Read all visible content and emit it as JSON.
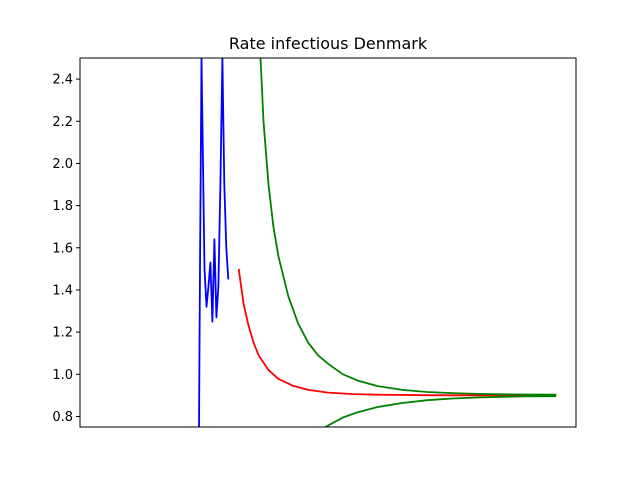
{
  "chart_data": {
    "type": "line",
    "title": "Rate infectious Denmark",
    "xlabel": "",
    "ylabel": "",
    "ylim": [
      0.75,
      2.5
    ],
    "xlim": [
      0,
      100
    ],
    "x_ticks_shown": false,
    "y_ticks": [
      0.8,
      1.0,
      1.2,
      1.4,
      1.6,
      1.8,
      2.0,
      2.2,
      2.4
    ],
    "y_tick_labels": [
      "0.8",
      "1.0",
      "1.2",
      "1.4",
      "1.6",
      "1.8",
      "2.0",
      "2.2",
      "2.4"
    ],
    "grid": false,
    "legend": "none",
    "series": [
      {
        "color": "#0000ff",
        "x": [
          24.0,
          24.2,
          24.5,
          24.8,
          25.1,
          25.5,
          25.9,
          26.3,
          26.7,
          27.1,
          27.5,
          27.9,
          28.3,
          28.7,
          29.1,
          29.5,
          29.9,
          30.3,
          30.6,
          30.9,
          31.2
        ],
        "y": [
          0.75,
          1.5,
          2.5,
          2.0,
          1.5,
          1.32,
          1.42,
          1.53,
          1.25,
          1.64,
          1.27,
          1.42,
          1.9,
          2.5,
          1.9,
          1.6,
          1.45,
          null,
          null,
          null,
          null
        ]
      },
      {
        "color": "#ff0000",
        "x": [
          32,
          33,
          34,
          35,
          36,
          38,
          40,
          43,
          46,
          50,
          55,
          60,
          70,
          80,
          90,
          96
        ],
        "y": [
          1.5,
          1.33,
          1.23,
          1.15,
          1.09,
          1.02,
          0.978,
          0.945,
          0.926,
          0.913,
          0.906,
          0.903,
          0.901,
          0.9,
          0.9,
          0.9
        ]
      },
      {
        "color": "#008000",
        "x": [
          36.4,
          37,
          38,
          39,
          40,
          42,
          44,
          46,
          48,
          50,
          53,
          56,
          60,
          65,
          70,
          75,
          80,
          85,
          90,
          96
        ],
        "y": [
          2.5,
          2.2,
          1.9,
          1.7,
          1.56,
          1.37,
          1.24,
          1.15,
          1.09,
          1.05,
          1.0,
          0.97,
          0.944,
          0.926,
          0.916,
          0.911,
          0.907,
          0.905,
          0.904,
          0.903
        ]
      },
      {
        "color": "#008000",
        "x": [
          49.5,
          51,
          53,
          56,
          60,
          65,
          70,
          75,
          80,
          85,
          90,
          96
        ],
        "y": [
          0.75,
          0.77,
          0.795,
          0.82,
          0.845,
          0.864,
          0.877,
          0.885,
          0.89,
          0.893,
          0.895,
          0.896
        ]
      }
    ]
  }
}
